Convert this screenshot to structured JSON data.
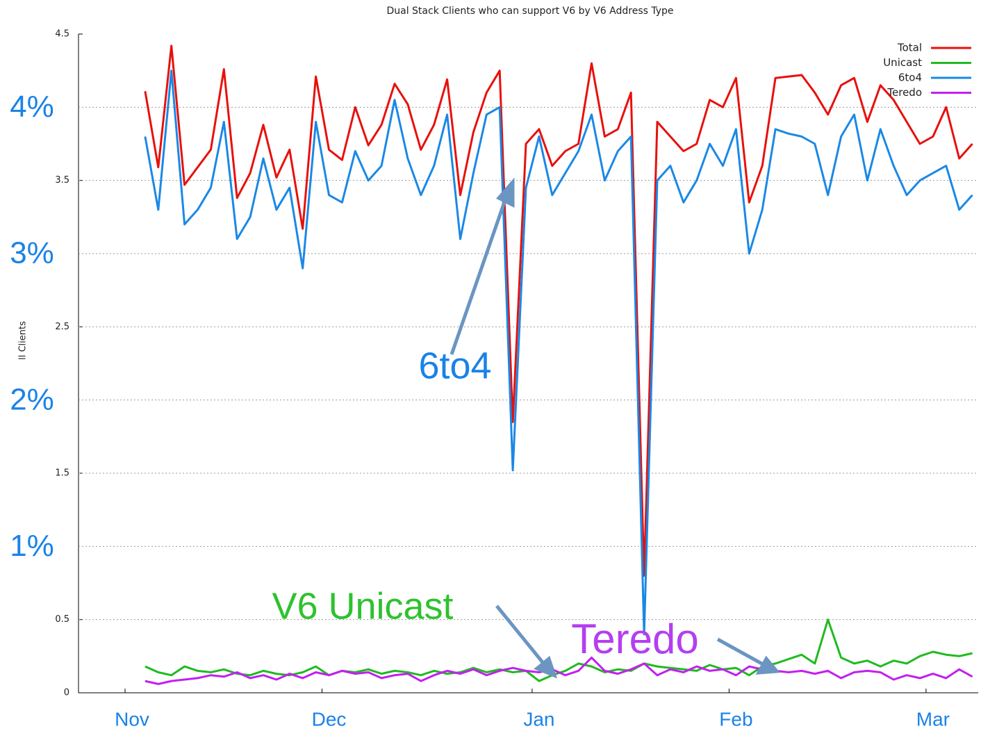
{
  "chart_data": {
    "type": "line",
    "title": "Dual Stack Clients who can support V6 by V6 Address Type",
    "ylabel": "ll Clients",
    "categories": [
      "Nov",
      null,
      null,
      null,
      null,
      null,
      null,
      null,
      null,
      null,
      null,
      null,
      null,
      null,
      null,
      "Dec",
      null,
      null,
      null,
      null,
      null,
      null,
      null,
      null,
      null,
      null,
      null,
      null,
      null,
      null,
      null,
      "Jan",
      null,
      null,
      null,
      null,
      null,
      null,
      null,
      null,
      null,
      null,
      null,
      null,
      null,
      null,
      "Feb",
      null,
      null,
      null,
      null,
      null,
      null,
      null,
      null,
      null,
      null,
      null,
      null,
      null,
      null,
      "Mar",
      null,
      null,
      null
    ],
    "ylim": [
      0,
      4.5
    ],
    "yticks": [
      0,
      0.5,
      1.5,
      2.5,
      3.5,
      4.5
    ],
    "pct_ticks": [
      {
        "value": 1,
        "label": "1%"
      },
      {
        "value": 2,
        "label": "2%"
      },
      {
        "value": 3,
        "label": "3%"
      },
      {
        "value": 4,
        "label": "4%"
      }
    ],
    "grid": true,
    "legend": "upper right",
    "series": [
      {
        "name": "Total",
        "color": "#e8100c",
        "values": [
          null,
          4.11,
          3.59,
          4.42,
          3.47,
          3.59,
          3.71,
          4.26,
          3.38,
          3.55,
          3.88,
          3.52,
          3.71,
          3.17,
          4.21,
          3.71,
          3.64,
          4.0,
          3.74,
          3.88,
          4.16,
          4.02,
          3.71,
          3.88,
          4.19,
          3.4,
          3.83,
          4.1,
          4.25,
          1.85,
          3.75,
          3.85,
          3.6,
          3.7,
          3.75,
          4.3,
          3.8,
          3.85,
          4.1,
          0.8,
          3.9,
          3.8,
          3.7,
          3.75,
          4.05,
          4.0,
          4.2,
          3.35,
          3.6,
          4.2,
          4.21,
          4.22,
          4.1,
          3.95,
          4.15,
          4.2,
          3.9,
          4.15,
          4.05,
          3.9,
          3.75,
          3.8,
          4.0,
          3.65,
          3.75
        ]
      },
      {
        "name": "Unicast",
        "color": "#1fbb1f",
        "values": [
          null,
          0.18,
          0.14,
          0.12,
          0.18,
          0.15,
          0.14,
          0.16,
          0.13,
          0.12,
          0.15,
          0.13,
          0.12,
          0.14,
          0.18,
          0.12,
          0.15,
          0.14,
          0.16,
          0.13,
          0.15,
          0.14,
          0.12,
          0.15,
          0.13,
          0.14,
          0.17,
          0.14,
          0.16,
          0.14,
          0.15,
          0.08,
          0.12,
          0.15,
          0.2,
          0.18,
          0.14,
          0.16,
          0.15,
          0.2,
          0.18,
          0.17,
          0.16,
          0.15,
          0.19,
          0.16,
          0.17,
          0.12,
          0.18,
          0.2,
          0.23,
          0.26,
          0.2,
          0.5,
          0.24,
          0.2,
          0.22,
          0.18,
          0.22,
          0.2,
          0.25,
          0.28,
          0.26,
          0.25,
          0.27
        ]
      },
      {
        "name": "6to4",
        "color": "#1a88e6",
        "values": [
          null,
          3.8,
          3.3,
          4.25,
          3.2,
          3.3,
          3.45,
          3.9,
          3.1,
          3.25,
          3.65,
          3.3,
          3.45,
          2.9,
          3.9,
          3.4,
          3.35,
          3.7,
          3.5,
          3.6,
          4.05,
          3.65,
          3.4,
          3.6,
          3.95,
          3.1,
          3.55,
          3.95,
          4.0,
          1.52,
          3.45,
          3.8,
          3.4,
          3.55,
          3.7,
          3.95,
          3.5,
          3.7,
          3.8,
          0.4,
          3.5,
          3.6,
          3.35,
          3.5,
          3.75,
          3.6,
          3.85,
          3.0,
          3.3,
          3.85,
          3.82,
          3.8,
          3.75,
          3.4,
          3.8,
          3.95,
          3.5,
          3.85,
          3.6,
          3.4,
          3.5,
          3.55,
          3.6,
          3.3,
          3.4
        ]
      },
      {
        "name": "Teredo",
        "color": "#c21ff0",
        "values": [
          null,
          0.08,
          0.06,
          0.08,
          0.09,
          0.1,
          0.12,
          0.11,
          0.14,
          0.1,
          0.12,
          0.09,
          0.13,
          0.1,
          0.14,
          0.12,
          0.15,
          0.13,
          0.14,
          0.1,
          0.12,
          0.13,
          0.08,
          0.12,
          0.15,
          0.13,
          0.16,
          0.12,
          0.15,
          0.17,
          0.15,
          0.14,
          0.16,
          0.12,
          0.15,
          0.24,
          0.15,
          0.13,
          0.16,
          0.2,
          0.12,
          0.16,
          0.14,
          0.18,
          0.15,
          0.16,
          0.12,
          0.18,
          0.16,
          0.15,
          0.14,
          0.15,
          0.13,
          0.15,
          0.1,
          0.14,
          0.15,
          0.14,
          0.09,
          0.12,
          0.1,
          0.13,
          0.1,
          0.16,
          0.11
        ]
      }
    ],
    "annotations": [
      {
        "text": "6to4",
        "color": "#1a82e8"
      },
      {
        "text": "V6 Unicast",
        "color": "#2ec22e"
      },
      {
        "text": "Teredo",
        "color": "#b43ef0"
      }
    ]
  }
}
